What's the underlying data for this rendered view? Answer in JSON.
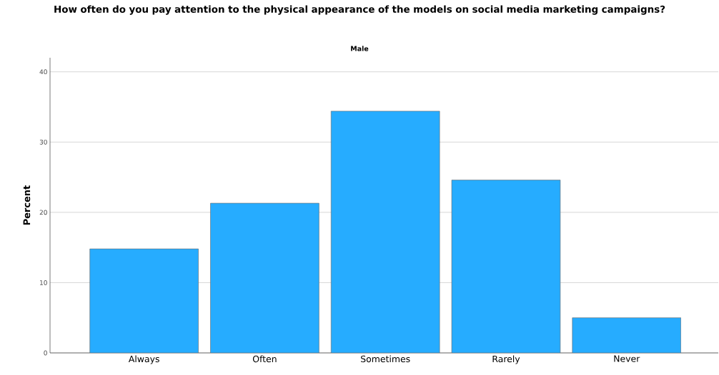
{
  "chart_data": {
    "type": "bar",
    "title": "How often do you pay attention to the physical appearance of the models on social media marketing campaigns?",
    "subtitle": "Male",
    "ylabel": "Percent",
    "categories": [
      "Always",
      "Often",
      "Sometimes",
      "Rarely",
      "Never"
    ],
    "values": [
      14.8,
      21.3,
      34.4,
      24.6,
      5.0
    ],
    "color": "#26acff",
    "ylim": [
      0,
      42
    ],
    "yticks": [
      0,
      10,
      20,
      30,
      40
    ],
    "grid": "y"
  }
}
